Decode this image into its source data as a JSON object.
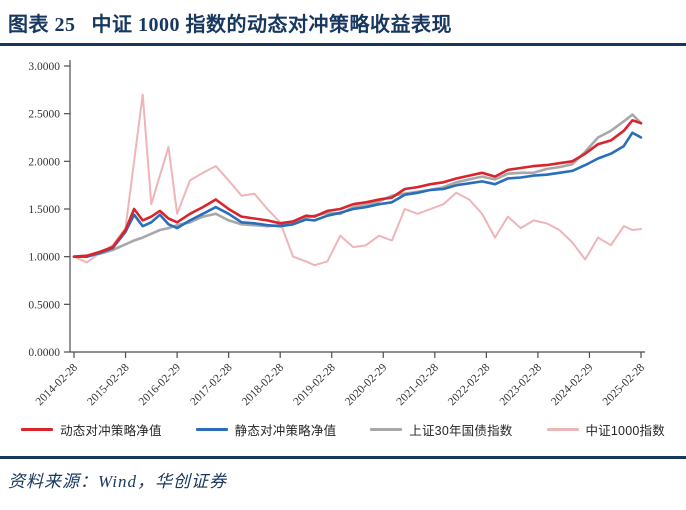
{
  "header": {
    "label": "图表 25",
    "title": "中证 1000 指数的动态对冲策略收益表现"
  },
  "footer": {
    "source": "资料来源：Wind，华创证券"
  },
  "colors": {
    "accent_navy": "#17375E",
    "red": "#D9242B",
    "blue": "#2A6EBB",
    "gray": "#A8A8A8",
    "pink": "#EFB4B8",
    "axis": "#4d4d4d"
  },
  "chart_data": {
    "type": "line",
    "title": "中证1000指数的动态对冲策略收益表现",
    "xlabel": "",
    "ylabel": "",
    "ylim": [
      0.0,
      3.0
    ],
    "grid": false,
    "legend_position": "bottom",
    "y_ticks": [
      "0.0000",
      "0.5000",
      "1.0000",
      "1.5000",
      "2.0000",
      "2.5000",
      "3.0000"
    ],
    "x_ticks": [
      "2014-02-28",
      "2015-02-28",
      "2016-02-29",
      "2017-02-28",
      "2018-02-28",
      "2019-02-28",
      "2020-02-29",
      "2021-02-28",
      "2022-02-28",
      "2023-02-28",
      "2024-02-29",
      "2025-02-28"
    ],
    "x": [
      "2014-02",
      "2014-05",
      "2014-08",
      "2014-11",
      "2015-02",
      "2015-04",
      "2015-06",
      "2015-08",
      "2015-10",
      "2015-12",
      "2016-02",
      "2016-05",
      "2016-08",
      "2016-11",
      "2017-02",
      "2017-05",
      "2017-08",
      "2017-11",
      "2018-02",
      "2018-05",
      "2018-08",
      "2018-10",
      "2019-01",
      "2019-04",
      "2019-07",
      "2019-10",
      "2020-01",
      "2020-04",
      "2020-07",
      "2020-10",
      "2021-01",
      "2021-04",
      "2021-07",
      "2021-10",
      "2022-01",
      "2022-04",
      "2022-07",
      "2022-10",
      "2023-01",
      "2023-04",
      "2023-07",
      "2023-10",
      "2024-01",
      "2024-04",
      "2024-07",
      "2024-10",
      "2024-12",
      "2025-02"
    ],
    "series": [
      {
        "name": "中证1000指数",
        "color": "#EFB4B8",
        "line_width": 2.0,
        "values": [
          1.0,
          0.94,
          1.04,
          1.12,
          1.3,
          2.0,
          2.7,
          1.55,
          1.85,
          2.15,
          1.45,
          1.8,
          1.88,
          1.95,
          1.8,
          1.64,
          1.66,
          1.5,
          1.36,
          1.0,
          0.95,
          0.91,
          0.95,
          1.22,
          1.1,
          1.12,
          1.22,
          1.17,
          1.5,
          1.45,
          1.5,
          1.55,
          1.67,
          1.6,
          1.45,
          1.2,
          1.42,
          1.3,
          1.38,
          1.35,
          1.28,
          1.15,
          0.97,
          1.2,
          1.12,
          1.32,
          1.28,
          1.29
        ]
      },
      {
        "name": "上证30年国债指数",
        "color": "#A8A8A8",
        "line_width": 2.6,
        "values": [
          1.0,
          1.01,
          1.03,
          1.07,
          1.13,
          1.17,
          1.2,
          1.24,
          1.28,
          1.3,
          1.33,
          1.36,
          1.42,
          1.45,
          1.38,
          1.34,
          1.33,
          1.32,
          1.33,
          1.36,
          1.41,
          1.43,
          1.46,
          1.45,
          1.52,
          1.54,
          1.58,
          1.64,
          1.66,
          1.68,
          1.7,
          1.73,
          1.78,
          1.81,
          1.84,
          1.81,
          1.87,
          1.88,
          1.88,
          1.92,
          1.94,
          1.97,
          2.1,
          2.25,
          2.32,
          2.42,
          2.49,
          2.4
        ]
      },
      {
        "name": "静态对冲策略净值",
        "color": "#2A6EBB",
        "line_width": 2.6,
        "values": [
          1.0,
          1.0,
          1.04,
          1.09,
          1.26,
          1.44,
          1.32,
          1.36,
          1.44,
          1.34,
          1.3,
          1.38,
          1.45,
          1.52,
          1.45,
          1.36,
          1.35,
          1.33,
          1.32,
          1.34,
          1.39,
          1.38,
          1.43,
          1.46,
          1.5,
          1.52,
          1.55,
          1.57,
          1.65,
          1.67,
          1.7,
          1.71,
          1.75,
          1.77,
          1.79,
          1.76,
          1.82,
          1.83,
          1.85,
          1.86,
          1.88,
          1.9,
          1.96,
          2.03,
          2.08,
          2.16,
          2.3,
          2.25
        ]
      },
      {
        "name": "动态对冲策略净值",
        "color": "#D9242B",
        "line_width": 2.6,
        "values": [
          1.0,
          1.01,
          1.05,
          1.1,
          1.28,
          1.5,
          1.38,
          1.42,
          1.48,
          1.4,
          1.36,
          1.45,
          1.52,
          1.6,
          1.5,
          1.42,
          1.4,
          1.38,
          1.35,
          1.37,
          1.43,
          1.42,
          1.48,
          1.5,
          1.55,
          1.57,
          1.6,
          1.62,
          1.71,
          1.73,
          1.76,
          1.78,
          1.82,
          1.85,
          1.88,
          1.84,
          1.91,
          1.93,
          1.95,
          1.96,
          1.98,
          2.0,
          2.08,
          2.18,
          2.22,
          2.32,
          2.43,
          2.4
        ]
      }
    ],
    "legend_order": [
      "动态对冲策略净值",
      "静态对冲策略净值",
      "上证30年国债指数",
      "中证1000指数"
    ]
  }
}
